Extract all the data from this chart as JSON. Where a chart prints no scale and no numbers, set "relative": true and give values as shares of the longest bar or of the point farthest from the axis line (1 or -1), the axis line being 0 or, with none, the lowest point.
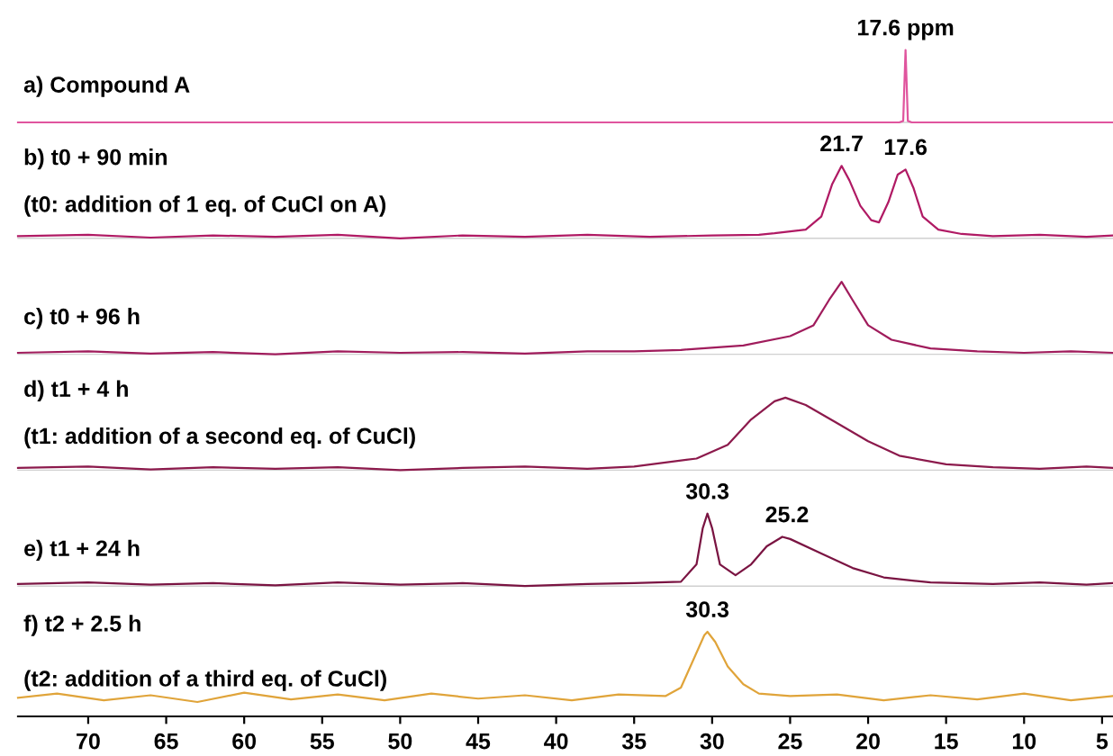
{
  "chart_data": [
    {
      "type": "line",
      "relative": true,
      "xlim": [
        74.5,
        4.3
      ],
      "xticks": [
        70,
        65,
        60,
        55,
        50,
        45,
        40,
        35,
        30,
        25,
        20,
        15,
        10,
        5
      ],
      "tick_labels": false,
      "annotations": [
        "a) Compound A",
        {
          "text": "17.6 ppm",
          "x": 17.6,
          "y": 1
        }
      ],
      "series": [
        {
          "color": "#e0559e",
          "x": [
            74.5,
            60,
            40,
            20,
            18.0,
            17.75,
            17.6,
            17.45,
            17.2,
            10,
            4.3
          ],
          "values": [
            0,
            0,
            0,
            0,
            0,
            0.02,
            1,
            0.02,
            0,
            0,
            0
          ]
        }
      ]
    },
    {
      "type": "line",
      "relative": true,
      "xlim": [
        74.5,
        4.3
      ],
      "xticks": [
        70,
        65,
        60,
        55,
        50,
        45,
        40,
        35,
        30,
        25,
        20,
        15,
        10,
        5
      ],
      "tick_labels": false,
      "annotations": [
        "b) t0 + 90 min",
        "(t0: addition of 1 eq. of CuCl on A)",
        {
          "text": "21.7",
          "x": 21.7,
          "y": 1
        },
        {
          "text": "17.6",
          "x": 17.6,
          "y": 0.95
        }
      ],
      "series": [
        {
          "color": "#b01a64",
          "x": [
            74.5,
            70,
            66,
            62,
            58,
            54,
            50,
            46,
            42,
            38,
            34,
            30,
            27,
            26,
            24,
            23,
            22.3,
            21.7,
            21.2,
            20.5,
            19.8,
            19.3,
            18.7,
            18.1,
            17.6,
            17.1,
            16.5,
            15.5,
            14,
            12,
            9,
            6,
            4.3
          ],
          "values": [
            0.03,
            0.05,
            0.01,
            0.04,
            0.02,
            0.05,
            0,
            0.04,
            0.02,
            0.05,
            0.02,
            0.04,
            0.05,
            0.07,
            0.12,
            0.3,
            0.75,
            1.0,
            0.8,
            0.45,
            0.25,
            0.22,
            0.5,
            0.88,
            0.95,
            0.7,
            0.3,
            0.12,
            0.06,
            0.03,
            0.05,
            0.02,
            0.04
          ]
        }
      ]
    },
    {
      "type": "line",
      "relative": true,
      "xlim": [
        74.5,
        4.3
      ],
      "xticks": [
        70,
        65,
        60,
        55,
        50,
        45,
        40,
        35,
        30,
        25,
        20,
        15,
        10,
        5
      ],
      "tick_labels": false,
      "annotations": [
        "c) t0 + 96 h"
      ],
      "series": [
        {
          "color": "#a01c5c",
          "x": [
            74.5,
            70,
            66,
            62,
            58,
            54,
            50,
            46,
            42,
            38,
            35,
            32,
            28,
            25,
            23.5,
            22.5,
            21.7,
            21,
            20,
            18.5,
            16,
            13,
            10,
            7,
            4.3
          ],
          "values": [
            0.02,
            0.04,
            0.01,
            0.03,
            0,
            0.04,
            0.02,
            0.03,
            0.01,
            0.04,
            0.04,
            0.06,
            0.12,
            0.25,
            0.4,
            0.75,
            1.0,
            0.75,
            0.4,
            0.2,
            0.08,
            0.04,
            0.02,
            0.04,
            0.02
          ]
        }
      ]
    },
    {
      "type": "line",
      "relative": true,
      "xlim": [
        74.5,
        4.3
      ],
      "xticks": [
        70,
        65,
        60,
        55,
        50,
        45,
        40,
        35,
        30,
        25,
        20,
        15,
        10,
        5
      ],
      "tick_labels": false,
      "annotations": [
        "d) t1 + 4 h",
        "(t1: addition of a second eq. of CuCl)"
      ],
      "series": [
        {
          "color": "#8c1a4c",
          "x": [
            74.5,
            70,
            66,
            62,
            58,
            54,
            50,
            46,
            42,
            38,
            35,
            31,
            29,
            27.5,
            26,
            25.3,
            24,
            22,
            20,
            18,
            15,
            12,
            9,
            6,
            4.3
          ],
          "values": [
            0.03,
            0.05,
            0.01,
            0.04,
            0.02,
            0.04,
            0,
            0.03,
            0.05,
            0.02,
            0.05,
            0.16,
            0.35,
            0.7,
            0.95,
            1.0,
            0.9,
            0.65,
            0.4,
            0.2,
            0.08,
            0.04,
            0.02,
            0.05,
            0.03
          ]
        }
      ]
    },
    {
      "type": "line",
      "relative": true,
      "xlim": [
        74.5,
        4.3
      ],
      "xticks": [
        70,
        65,
        60,
        55,
        50,
        45,
        40,
        35,
        30,
        25,
        20,
        15,
        10,
        5
      ],
      "tick_labels": false,
      "annotations": [
        "e) t1 + 24 h",
        {
          "text": "30.3",
          "x": 30.3,
          "y": 1
        },
        {
          "text": "25.2",
          "x": 25.2,
          "y": 0.68
        }
      ],
      "series": [
        {
          "color": "#7a1442",
          "x": [
            74.5,
            70,
            66,
            62,
            58,
            54,
            50,
            46,
            42,
            38,
            35,
            32,
            31,
            30.6,
            30.3,
            30,
            29.5,
            28.5,
            27.5,
            26.5,
            25.5,
            25,
            23,
            21,
            19,
            16,
            12,
            9,
            6,
            4.3
          ],
          "values": [
            0.03,
            0.05,
            0.02,
            0.04,
            0.01,
            0.05,
            0.02,
            0.04,
            0,
            0.03,
            0.04,
            0.06,
            0.3,
            0.8,
            1.0,
            0.8,
            0.3,
            0.15,
            0.3,
            0.55,
            0.68,
            0.65,
            0.45,
            0.25,
            0.12,
            0.05,
            0.03,
            0.05,
            0.02,
            0.04
          ]
        }
      ]
    },
    {
      "type": "line",
      "relative": true,
      "xlim": [
        74.5,
        4.3
      ],
      "xticks": [
        70,
        65,
        60,
        55,
        50,
        45,
        40,
        35,
        30,
        25,
        20,
        15,
        10,
        5
      ],
      "tick_labels": "x",
      "annotations": [
        "f) t2 + 2.5 h",
        "(t2: addition of a third eq. of CuCl)",
        {
          "text": "30.3",
          "x": 30.3,
          "y": 1
        }
      ],
      "series": [
        {
          "color": "#e0a43a",
          "x": [
            74.5,
            72,
            69,
            66,
            63,
            60,
            57,
            54,
            51,
            48,
            45,
            42,
            39,
            36,
            33,
            32,
            31.2,
            30.5,
            30.3,
            29.8,
            29,
            28,
            27,
            25,
            22,
            19,
            16,
            13,
            10,
            7,
            4.3
          ],
          "values": [
            0.22,
            0.27,
            0.19,
            0.25,
            0.17,
            0.28,
            0.2,
            0.26,
            0.19,
            0.27,
            0.21,
            0.25,
            0.19,
            0.26,
            0.24,
            0.34,
            0.67,
            0.96,
            1.0,
            0.88,
            0.59,
            0.38,
            0.27,
            0.24,
            0.26,
            0.19,
            0.25,
            0.2,
            0.27,
            0.19,
            0.24
          ]
        }
      ]
    }
  ]
}
